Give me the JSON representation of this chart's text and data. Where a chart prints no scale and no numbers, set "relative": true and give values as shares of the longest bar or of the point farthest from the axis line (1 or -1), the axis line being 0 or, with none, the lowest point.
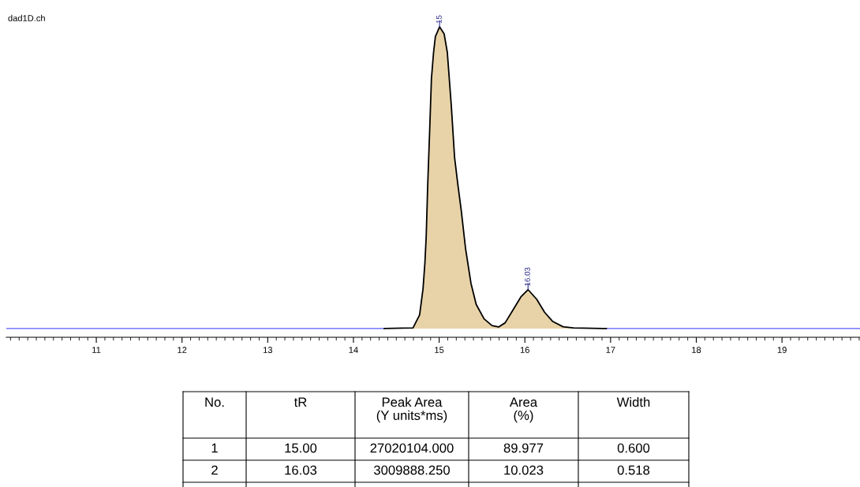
{
  "chart_data": [
    {
      "type": "area",
      "title": "dad1D.ch",
      "relative": true,
      "xlim": [
        9.95,
        19.91
      ],
      "xticks": [
        11,
        12,
        13,
        14,
        15,
        16,
        17,
        18,
        19
      ],
      "tick_labels": "x",
      "grid": false,
      "legend": false,
      "annotations": [
        {
          "text": "15",
          "x": 15.005,
          "y": 1.0
        },
        {
          "text": "16.03",
          "x": 16.037,
          "y": 0.129
        }
      ],
      "series": [
        {
          "type": "line",
          "color": "#5a5aff",
          "x": [
            9.95,
            14.36,
            null,
            16.95,
            19.91
          ],
          "values": [
            0,
            0,
            null,
            0,
            0
          ]
        },
        {
          "type": "area",
          "color": "#e8d3a8",
          "x": [
            14.36,
            14.695,
            14.772,
            14.812,
            14.834,
            14.849,
            14.867,
            14.889,
            14.91,
            14.935,
            14.956,
            15.005,
            15.058,
            15.095,
            15.141,
            15.18,
            15.217,
            15.257,
            15.309,
            15.371,
            15.432,
            15.524,
            15.616,
            15.693,
            15.77,
            15.862,
            15.954,
            16.037,
            16.138,
            16.23,
            16.322,
            16.445,
            16.568,
            16.95
          ],
          "values": [
            0,
            0.002,
            0.045,
            0.132,
            0.219,
            0.306,
            0.48,
            0.654,
            0.829,
            0.916,
            0.968,
            1.0,
            0.977,
            0.916,
            0.742,
            0.567,
            0.48,
            0.393,
            0.263,
            0.15,
            0.08,
            0.032,
            0.01,
            0.005,
            0.019,
            0.062,
            0.105,
            0.129,
            0.097,
            0.054,
            0.024,
            0.006,
            0.002,
            0
          ]
        }
      ]
    },
    {
      "type": "other",
      "categories": [
        "No.",
        "tR",
        "Peak Area\n(Y units*ms)",
        "Area\n(%)",
        "Width"
      ],
      "cell_labels": [
        [
          "1",
          "15.00",
          "27020104.000",
          "89.977",
          "0.600"
        ],
        [
          "2",
          "16.03",
          "3009888.250",
          "10.023",
          "0.518"
        ]
      ]
    }
  ]
}
